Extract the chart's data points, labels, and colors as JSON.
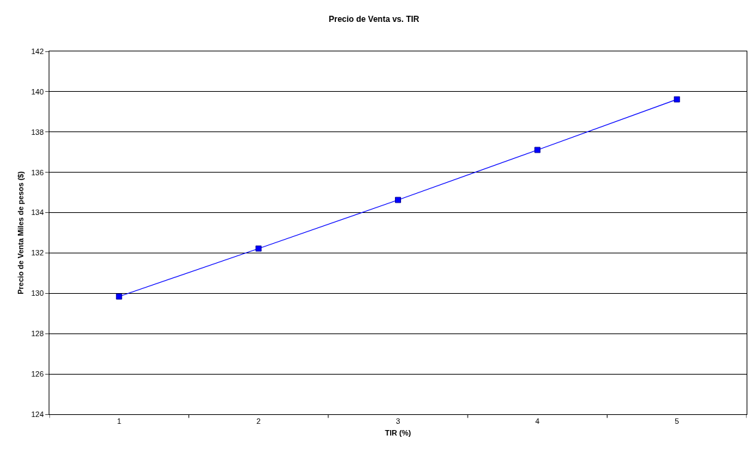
{
  "chart_data": {
    "type": "line",
    "title": "Precio de Venta vs. TIR",
    "xlabel": "TIR (%)",
    "ylabel": "Precio de Venta Miles de pesos ($)",
    "categories": [
      "1",
      "2",
      "3",
      "4",
      "5"
    ],
    "series": [
      {
        "color": "#0000ff",
        "values": [
          129.84,
          132.22,
          134.63,
          137.11,
          139.62
        ]
      }
    ],
    "ylim": [
      124,
      142
    ],
    "yticks": [
      124,
      126,
      128,
      130,
      132,
      134,
      136,
      138,
      140,
      142
    ],
    "grid": "y",
    "legend": false,
    "marker": "square",
    "line_style": "solid"
  }
}
